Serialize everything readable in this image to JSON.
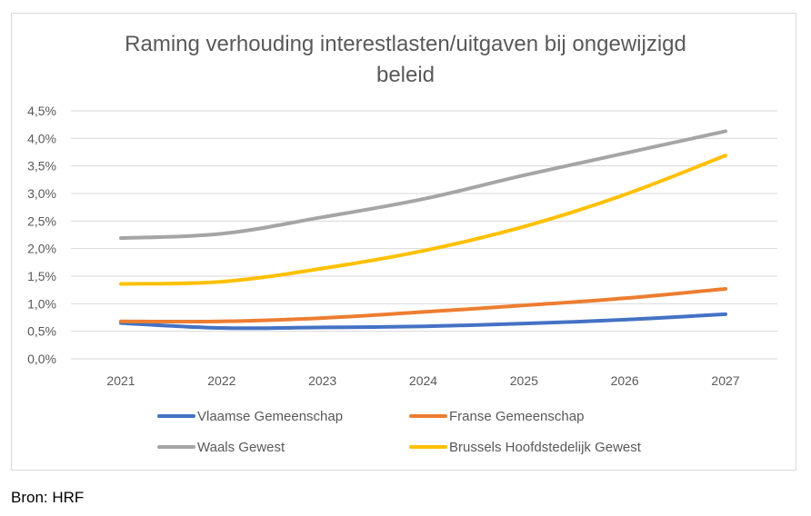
{
  "source": "Bron: HRF",
  "chart_data": {
    "type": "line",
    "title_lines": [
      "Raming verhouding interestlasten/uitgaven bij ongewijzigd",
      "beleid"
    ],
    "categories": [
      "2021",
      "2022",
      "2023",
      "2024",
      "2025",
      "2026",
      "2027"
    ],
    "y_tick_labels": [
      "0,0%",
      "0,5%",
      "1,0%",
      "1,5%",
      "2,0%",
      "2,5%",
      "3,0%",
      "3,5%",
      "4,0%",
      "4,5%"
    ],
    "ylim": [
      0,
      4.5
    ],
    "y_unit": "%",
    "grid": true,
    "legend_position": "bottom",
    "series": [
      {
        "name": "Vlaamse Gemeenschap",
        "color": "#4472C4",
        "values": [
          0.65,
          0.56,
          0.57,
          0.59,
          0.64,
          0.71,
          0.81
        ]
      },
      {
        "name": "Franse Gemeenschap",
        "color": "#ED7D31",
        "values": [
          0.68,
          0.68,
          0.74,
          0.85,
          0.97,
          1.1,
          1.27
        ]
      },
      {
        "name": "Waals Gewest",
        "color": "#A5A5A5",
        "values": [
          2.19,
          2.27,
          2.57,
          2.9,
          3.33,
          3.73,
          4.13
        ]
      },
      {
        "name": "Brussels Hoofdstedelijk Gewest",
        "color": "#FFC000",
        "values": [
          1.36,
          1.4,
          1.64,
          1.96,
          2.4,
          2.98,
          3.69
        ]
      }
    ]
  }
}
